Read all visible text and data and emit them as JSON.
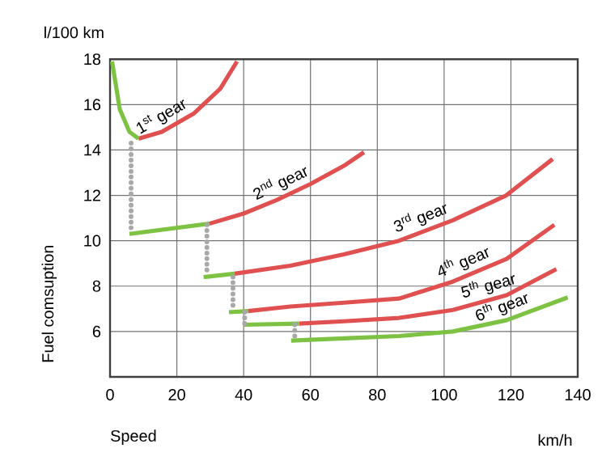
{
  "chart_data": {
    "type": "line",
    "xlabel": "Speed",
    "ylabel": "Fuel comsuption",
    "annotations": [
      "l/100 km",
      "km/h"
    ],
    "xlim": [
      0,
      140
    ],
    "xticks": [
      0,
      20,
      40,
      60,
      80,
      100,
      120,
      140
    ],
    "ylim": [
      4,
      18
    ],
    "yticks": [
      6,
      8,
      10,
      12,
      14,
      16,
      18
    ],
    "grid": true,
    "series": [
      {
        "name": "1$^{st}$ gear",
        "color": "#e05050",
        "x": [
          8.5,
          15.5,
          25,
          33,
          38
        ],
        "values": [
          14.5,
          14.8,
          15.6,
          16.7,
          17.9
        ]
      },
      {
        "color": "#7dc242",
        "x": [
          0.6,
          2.9,
          5.8,
          8.5
        ],
        "values": [
          17.9,
          15.8,
          14.8,
          14.5
        ]
      },
      {
        "name": "2$^{nd}$ gear",
        "color": "#e05050",
        "x": [
          29.7,
          40,
          50,
          60,
          70,
          76
        ],
        "values": [
          10.75,
          11.2,
          11.8,
          12.5,
          13.3,
          13.9
        ]
      },
      {
        "color": "#7dc242",
        "x": [
          5.8,
          29.7
        ],
        "values": [
          10.3,
          10.75
        ]
      },
      {
        "name": "3$^{rd}$ gear",
        "color": "#e05050",
        "x": [
          37.3,
          54,
          70,
          86.5,
          102.6,
          118.6,
          132.5
        ],
        "values": [
          8.55,
          8.9,
          9.4,
          10.0,
          10.9,
          12.0,
          13.6
        ]
      },
      {
        "color": "#7dc242",
        "x": [
          28,
          37.3
        ],
        "values": [
          8.4,
          8.55
        ]
      },
      {
        "name": "4$^{th}$ gear",
        "color": "#e05050",
        "x": [
          41.3,
          54,
          70,
          86.5,
          102.6,
          118.7,
          133
        ],
        "values": [
          6.9,
          7.1,
          7.27,
          7.45,
          8.2,
          9.2,
          10.7
        ]
      },
      {
        "color": "#7dc242",
        "x": [
          35.6,
          41.3
        ],
        "values": [
          6.85,
          6.9
        ]
      },
      {
        "name": "5$^{th}$ gear",
        "color": "#e05050",
        "x": [
          56.6,
          70,
          86.5,
          102.6,
          118.7,
          133.6
        ],
        "values": [
          6.35,
          6.45,
          6.6,
          6.95,
          7.6,
          8.75
        ]
      },
      {
        "color": "#7dc242",
        "x": [
          40,
          56.6
        ],
        "values": [
          6.3,
          6.35
        ]
      },
      {
        "name": "6$^{th}$ gear",
        "color": "#7dc242",
        "x": [
          54.2,
          70,
          86.5,
          102.6,
          118.7,
          137
        ],
        "values": [
          5.6,
          5.7,
          5.8,
          6.0,
          6.5,
          7.5
        ]
      },
      {
        "color": "#a8a8a8",
        "line_style": "dotted",
        "x": [
          6.3,
          6.3
        ],
        "values": [
          14.3,
          10.4
        ]
      },
      {
        "color": "#a8a8a8",
        "line_style": "dotted",
        "x": [
          29,
          29
        ],
        "values": [
          10.7,
          8.5
        ]
      },
      {
        "color": "#a8a8a8",
        "line_style": "dotted",
        "x": [
          36.8,
          36.8
        ],
        "values": [
          8.4,
          7.0
        ]
      },
      {
        "color": "#a8a8a8",
        "line_style": "dotted",
        "x": [
          40.3,
          40.3
        ],
        "values": [
          6.85,
          6.3
        ]
      },
      {
        "color": "#a8a8a8",
        "line_style": "dotted",
        "x": [
          55.3,
          55.3
        ],
        "values": [
          6.3,
          5.6
        ]
      }
    ]
  }
}
